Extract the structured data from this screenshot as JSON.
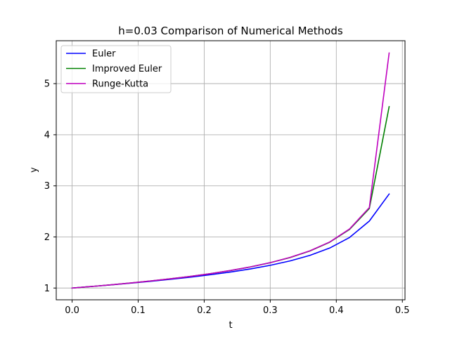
{
  "chart_data": {
    "type": "line",
    "title": "h=0.03 Comparison of Numerical Methods",
    "xlabel": "t",
    "ylabel": "y",
    "xlim": [
      -0.024,
      0.504
    ],
    "ylim": [
      0.77,
      5.84
    ],
    "xticks": [
      0.0,
      0.1,
      0.2,
      0.3,
      0.4,
      0.5
    ],
    "xtick_labels": [
      "0.0",
      "0.1",
      "0.2",
      "0.3",
      "0.4",
      "0.5"
    ],
    "yticks": [
      1,
      2,
      3,
      4,
      5
    ],
    "ytick_labels": [
      "1",
      "2",
      "3",
      "4",
      "5"
    ],
    "grid": true,
    "legend_position": "top-left",
    "x": [
      0.0,
      0.03,
      0.06,
      0.09,
      0.12,
      0.15,
      0.18,
      0.21,
      0.24,
      0.27,
      0.3,
      0.33,
      0.36,
      0.39,
      0.42,
      0.45,
      0.48
    ],
    "series": [
      {
        "name": "Euler",
        "color": "#0000ff",
        "values": [
          1.0,
          1.031,
          1.063,
          1.097,
          1.133,
          1.172,
          1.214,
          1.261,
          1.314,
          1.374,
          1.445,
          1.531,
          1.639,
          1.783,
          1.989,
          2.311,
          2.84
        ]
      },
      {
        "name": "Improved Euler",
        "color": "#008000",
        "values": [
          1.0,
          1.031,
          1.065,
          1.101,
          1.14,
          1.183,
          1.23,
          1.283,
          1.343,
          1.413,
          1.496,
          1.597,
          1.725,
          1.897,
          2.146,
          2.556,
          4.55
        ]
      },
      {
        "name": "Runge-Kutta",
        "color": "#bf00bf",
        "values": [
          1.0,
          1.031,
          1.065,
          1.101,
          1.14,
          1.183,
          1.23,
          1.283,
          1.344,
          1.414,
          1.497,
          1.599,
          1.728,
          1.901,
          2.155,
          2.575,
          5.6
        ]
      }
    ]
  }
}
